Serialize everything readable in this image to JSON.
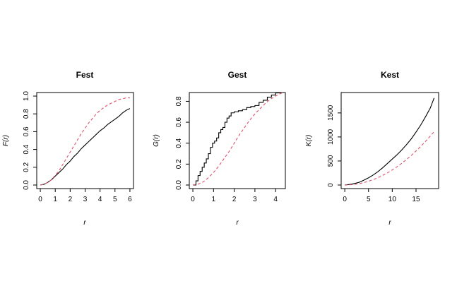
{
  "colors": {
    "observed": "#000000",
    "theoretical": "#DF536B",
    "frame": "#000000",
    "background": "#ffffff"
  },
  "chart_data": [
    {
      "type": "line",
      "title": "Fest",
      "xlabel": "r",
      "ylabel": "F(r)",
      "xlim": [
        0,
        6.0
      ],
      "ylim": [
        0,
        1.0
      ],
      "xticks": [
        "0",
        "1",
        "2",
        "3",
        "4",
        "5",
        "6"
      ],
      "yticks": [
        "0.0",
        "0.2",
        "0.4",
        "0.6",
        "0.8",
        "1.0"
      ],
      "grid": false,
      "series": [
        {
          "style": "solid",
          "x": [
            0,
            0.25,
            0.5,
            0.75,
            1.0,
            1.25,
            1.5,
            1.75,
            2.0,
            2.25,
            2.5,
            2.75,
            3.0,
            3.25,
            3.5,
            3.75,
            4.0,
            4.25,
            4.5,
            4.75,
            5.0,
            5.25,
            5.5,
            5.75,
            6.0
          ],
          "y": [
            0,
            0.008,
            0.03,
            0.06,
            0.1,
            0.14,
            0.18,
            0.23,
            0.27,
            0.32,
            0.36,
            0.41,
            0.45,
            0.49,
            0.53,
            0.57,
            0.61,
            0.64,
            0.68,
            0.71,
            0.74,
            0.77,
            0.81,
            0.84,
            0.86
          ]
        },
        {
          "style": "dashed",
          "x": [
            0,
            0.25,
            0.5,
            0.75,
            1.0,
            1.25,
            1.5,
            1.75,
            2.0,
            2.25,
            2.5,
            2.75,
            3.0,
            3.25,
            3.5,
            3.75,
            4.0,
            4.25,
            4.5,
            4.75,
            5.0,
            5.25,
            5.5,
            5.75,
            6.0
          ],
          "y": [
            0,
            0.01,
            0.03,
            0.06,
            0.11,
            0.16,
            0.23,
            0.3,
            0.37,
            0.44,
            0.51,
            0.58,
            0.64,
            0.7,
            0.75,
            0.8,
            0.84,
            0.87,
            0.9,
            0.92,
            0.94,
            0.96,
            0.97,
            0.98,
            0.98
          ]
        }
      ]
    },
    {
      "type": "line",
      "title": "Gest",
      "xlabel": "r",
      "ylabel": "G(r)",
      "xlim": [
        0,
        4.3
      ],
      "ylim": [
        0,
        0.85
      ],
      "xticks": [
        "0",
        "1",
        "2",
        "3",
        "4"
      ],
      "yticks": [
        "0.0",
        "0.2",
        "0.4",
        "0.6",
        "0.8"
      ],
      "grid": false,
      "series": [
        {
          "style": "step",
          "x": [
            0,
            0.15,
            0.25,
            0.35,
            0.45,
            0.55,
            0.65,
            0.75,
            0.85,
            0.95,
            1.05,
            1.15,
            1.25,
            1.35,
            1.45,
            1.55,
            1.65,
            1.75,
            1.85,
            2.0,
            2.2,
            2.4,
            2.6,
            2.8,
            3.0,
            3.2,
            3.4,
            3.6,
            3.8,
            4.0,
            4.3
          ],
          "y": [
            0,
            0.04,
            0.09,
            0.13,
            0.17,
            0.21,
            0.25,
            0.3,
            0.36,
            0.4,
            0.42,
            0.45,
            0.5,
            0.53,
            0.55,
            0.6,
            0.64,
            0.66,
            0.69,
            0.7,
            0.71,
            0.72,
            0.74,
            0.75,
            0.76,
            0.79,
            0.81,
            0.84,
            0.86,
            0.88,
            0.88
          ]
        },
        {
          "style": "dashed",
          "x": [
            0,
            0.25,
            0.5,
            0.75,
            1.0,
            1.25,
            1.5,
            1.75,
            2.0,
            2.25,
            2.5,
            2.75,
            3.0,
            3.25,
            3.5,
            3.75,
            4.0,
            4.3
          ],
          "y": [
            0,
            0.008,
            0.03,
            0.07,
            0.12,
            0.18,
            0.25,
            0.32,
            0.4,
            0.48,
            0.55,
            0.62,
            0.68,
            0.73,
            0.78,
            0.82,
            0.85,
            0.88
          ]
        }
      ]
    },
    {
      "type": "line",
      "title": "Kest",
      "xlabel": "r",
      "ylabel": "K(r)",
      "xlim": [
        0,
        19
      ],
      "ylim": [
        0,
        1850
      ],
      "xticks": [
        "0",
        "5",
        "10",
        "15"
      ],
      "yticks": [
        "0",
        "500",
        "1000",
        "1500"
      ],
      "grid": false,
      "series": [
        {
          "style": "solid",
          "x": [
            0,
            1,
            2,
            3,
            4,
            5,
            6,
            7,
            8,
            9,
            10,
            11,
            12,
            13,
            14,
            15,
            16,
            17,
            18,
            18.8
          ],
          "y": [
            0,
            12,
            30,
            55,
            100,
            150,
            210,
            280,
            360,
            450,
            540,
            630,
            730,
            840,
            960,
            1100,
            1250,
            1420,
            1600,
            1810
          ]
        },
        {
          "style": "dashed",
          "x": [
            0,
            1,
            2,
            3,
            4,
            5,
            6,
            7,
            8,
            9,
            10,
            11,
            12,
            13,
            14,
            15,
            16,
            17,
            18,
            18.8
          ],
          "y": [
            0,
            3,
            13,
            28,
            50,
            79,
            113,
            154,
            201,
            254,
            314,
            380,
            452,
            531,
            616,
            707,
            804,
            908,
            1018,
            1110
          ]
        }
      ]
    }
  ]
}
